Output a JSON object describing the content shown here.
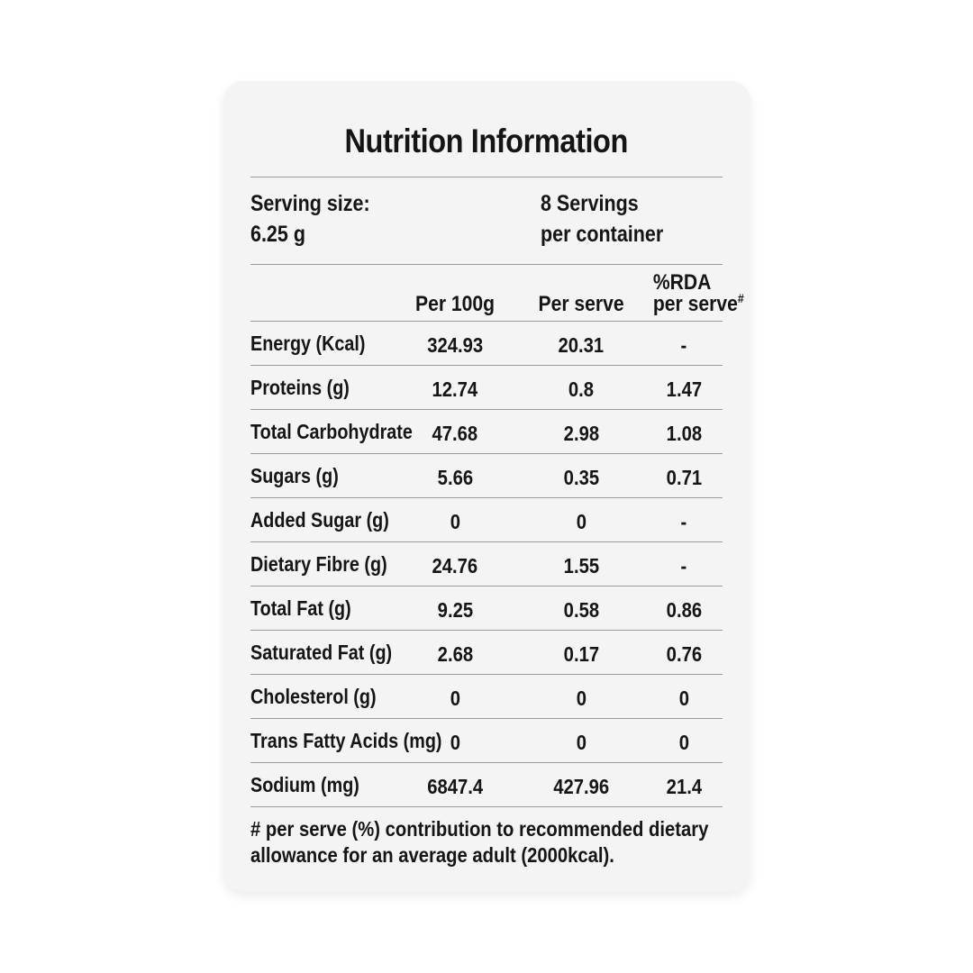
{
  "colors": {
    "page_bg": "#ffffff",
    "card_bg": "#f4f4f4",
    "text": "#151515",
    "divider": "#9a9a9a"
  },
  "label": {
    "title": "Nutrition Information",
    "serving": {
      "size_line1": "Serving size:",
      "size_line2": "6.25 g",
      "count_line1": "8 Servings",
      "count_line2": "per container"
    },
    "columns": {
      "per_100g": "Per 100g",
      "per_serve": "Per serve",
      "rda_line1": "%RDA",
      "rda_line2": "per serve",
      "rda_mark": "#"
    },
    "rows": [
      {
        "label": "Energy (Kcal)",
        "per_100g": "324.93",
        "per_serve": "20.31",
        "rda_per_serve": "-"
      },
      {
        "label": "Proteins (g)",
        "per_100g": "12.74",
        "per_serve": "0.8",
        "rda_per_serve": "1.47"
      },
      {
        "label": "Total Carbohydrate",
        "per_100g": "47.68",
        "per_serve": "2.98",
        "rda_per_serve": "1.08"
      },
      {
        "label": "Sugars (g)",
        "per_100g": "5.66",
        "per_serve": "0.35",
        "rda_per_serve": "0.71"
      },
      {
        "label": "Added Sugar (g)",
        "per_100g": "0",
        "per_serve": "0",
        "rda_per_serve": "-"
      },
      {
        "label": "Dietary Fibre (g)",
        "per_100g": "24.76",
        "per_serve": "1.55",
        "rda_per_serve": "-"
      },
      {
        "label": "Total Fat (g)",
        "per_100g": "9.25",
        "per_serve": "0.58",
        "rda_per_serve": "0.86"
      },
      {
        "label": "Saturated Fat (g)",
        "per_100g": "2.68",
        "per_serve": "0.17",
        "rda_per_serve": "0.76"
      },
      {
        "label": "Cholesterol (g)",
        "per_100g": "0",
        "per_serve": "0",
        "rda_per_serve": "0"
      },
      {
        "label": "Trans Fatty Acids (mg)",
        "per_100g": "0",
        "per_serve": "0",
        "rda_per_serve": "0"
      },
      {
        "label": "Sodium (mg)",
        "per_100g": "6847.4",
        "per_serve": "427.96",
        "rda_per_serve": "21.4"
      }
    ],
    "footnote": "# per serve (%) contribution to recommended dietary allowance for an average adult (2000kcal)."
  }
}
